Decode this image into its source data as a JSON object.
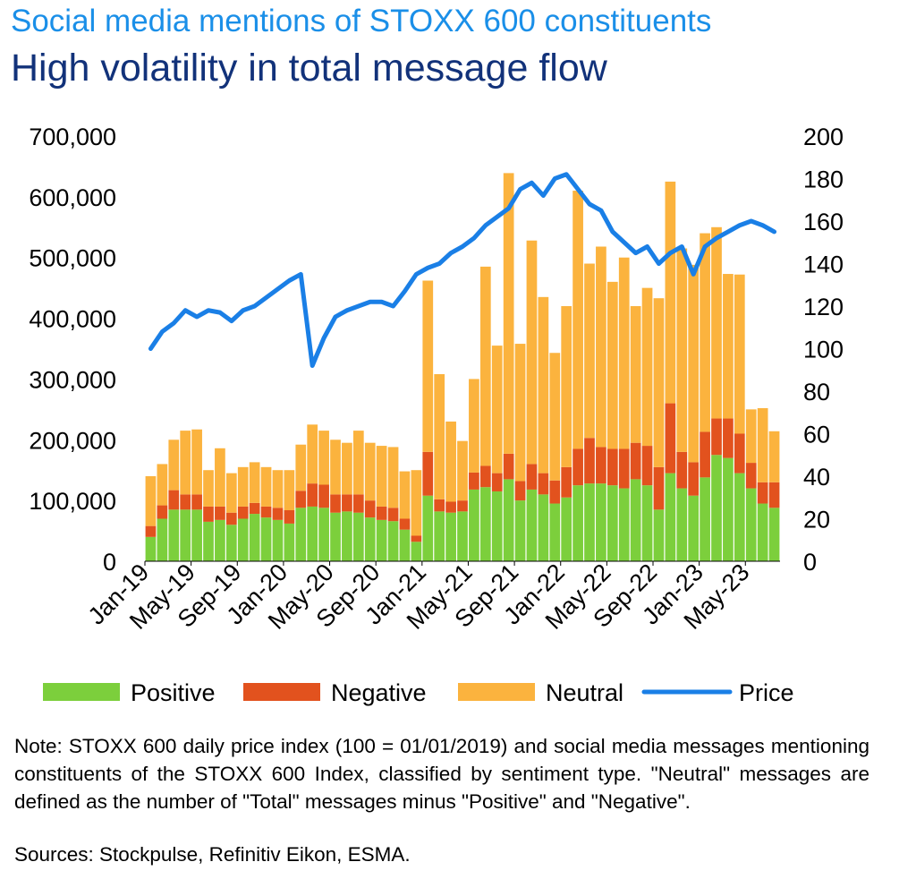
{
  "header": {
    "subtitle": "Social media mentions of STOXX 600 constituents",
    "title": "High volatility in total message flow"
  },
  "footer": {
    "note": "Note: STOXX 600 daily price index (100 = 01/01/2019) and social media messages mentioning constituents of the STOXX 600 Index, classified by sentiment type. \"Neutral\" messages are defined as the number of \"Total\" messages minus \"Positive\" and \"Negative\".",
    "source": "Sources: Stockpulse, Refinitiv Eikon, ESMA."
  },
  "colors": {
    "positive": "#7ccf3c",
    "negative": "#e2521e",
    "neutral": "#fbb33e",
    "price": "#1a7fe6"
  },
  "chart_data": {
    "type": "bar",
    "stacked": true,
    "categories": [
      "Jan-19",
      "Feb-19",
      "Mar-19",
      "Apr-19",
      "May-19",
      "Jun-19",
      "Jul-19",
      "Aug-19",
      "Sep-19",
      "Oct-19",
      "Nov-19",
      "Dec-19",
      "Jan-20",
      "Feb-20",
      "Mar-20",
      "Apr-20",
      "May-20",
      "Jun-20",
      "Jul-20",
      "Aug-20",
      "Sep-20",
      "Oct-20",
      "Nov-20",
      "Dec-20",
      "Jan-21",
      "Feb-21",
      "Mar-21",
      "Apr-21",
      "May-21",
      "Jun-21",
      "Jul-21",
      "Aug-21",
      "Sep-21",
      "Oct-21",
      "Nov-21",
      "Dec-21",
      "Jan-22",
      "Feb-22",
      "Mar-22",
      "Apr-22",
      "May-22",
      "Jun-22",
      "Jul-22",
      "Aug-22",
      "Sep-22",
      "Oct-22",
      "Nov-22",
      "Dec-22",
      "Jan-23",
      "Feb-23",
      "Mar-23",
      "Apr-23",
      "May-23",
      "Jun-23",
      "Jul-23"
    ],
    "x_tick_labels": [
      "Jan-19",
      "May-19",
      "Sep-19",
      "Jan-20",
      "May-20",
      "Sep-20",
      "Jan-21",
      "May-21",
      "Sep-21",
      "Jan-22",
      "May-22",
      "Sep-22",
      "Jan-23",
      "May-23"
    ],
    "series": [
      {
        "name": "Positive",
        "axis": "left",
        "values": [
          40000,
          70000,
          85000,
          85000,
          85000,
          65000,
          68000,
          60000,
          70000,
          78000,
          72000,
          68000,
          62000,
          88000,
          90000,
          88000,
          80000,
          82000,
          80000,
          72000,
          68000,
          66000,
          52000,
          32000,
          108000,
          82000,
          80000,
          82000,
          118000,
          122000,
          115000,
          135000,
          100000,
          118000,
          110000,
          95000,
          105000,
          125000,
          128000,
          128000,
          125000,
          120000,
          135000,
          125000,
          85000,
          145000,
          120000,
          108000,
          138000,
          175000,
          170000,
          145000,
          120000,
          95000,
          88000
        ]
      },
      {
        "name": "Negative",
        "axis": "left",
        "values": [
          18000,
          22000,
          32000,
          25000,
          25000,
          25000,
          22000,
          20000,
          20000,
          18000,
          18000,
          20000,
          22000,
          28000,
          38000,
          38000,
          30000,
          28000,
          30000,
          28000,
          22000,
          22000,
          18000,
          10000,
          72000,
          20000,
          18000,
          18000,
          28000,
          35000,
          30000,
          42000,
          32000,
          42000,
          35000,
          38000,
          50000,
          60000,
          75000,
          60000,
          60000,
          65000,
          60000,
          65000,
          70000,
          115000,
          60000,
          55000,
          75000,
          60000,
          65000,
          65000,
          42000,
          35000,
          42000
        ]
      },
      {
        "name": "Neutral",
        "axis": "left",
        "values": [
          82000,
          68000,
          83000,
          105000,
          107000,
          60000,
          96000,
          65000,
          65000,
          67000,
          65000,
          62000,
          66000,
          76000,
          97000,
          89000,
          90000,
          85000,
          105000,
          95000,
          100000,
          100000,
          78000,
          108000,
          282000,
          206000,
          132000,
          98000,
          154000,
          328000,
          210000,
          462000,
          226000,
          368000,
          290000,
          210000,
          265000,
          425000,
          287000,
          330000,
          275000,
          315000,
          225000,
          260000,
          278000,
          365000,
          335000,
          325000,
          327000,
          315000,
          238000,
          262000,
          88000,
          122000,
          84000
        ]
      },
      {
        "name": "Price",
        "axis": "right",
        "type": "line",
        "dates": [
          "Jan-19",
          "Feb-19",
          "Mar-19",
          "Apr-19",
          "May-19",
          "Jun-19",
          "Jul-19",
          "Aug-19",
          "Sep-19",
          "Oct-19",
          "Nov-19",
          "Dec-19",
          "Jan-20",
          "Feb-20",
          "Mar-20",
          "Apr-20",
          "May-20",
          "Jun-20",
          "Jul-20",
          "Aug-20",
          "Sep-20",
          "Oct-20",
          "Nov-20",
          "Dec-20",
          "Jan-21",
          "Feb-21",
          "Mar-21",
          "Apr-21",
          "May-21",
          "Jun-21",
          "Jul-21",
          "Aug-21",
          "Sep-21",
          "Oct-21",
          "Nov-21",
          "Dec-21",
          "Jan-22",
          "Feb-22",
          "Mar-22",
          "Apr-22",
          "May-22",
          "Jun-22",
          "Jul-22",
          "Aug-22",
          "Sep-22",
          "Oct-22",
          "Nov-22",
          "Dec-22",
          "Jan-23",
          "Feb-23",
          "Mar-23",
          "Apr-23",
          "May-23",
          "Jun-23",
          "Jul-23"
        ],
        "values": [
          100,
          108,
          112,
          118,
          115,
          118,
          117,
          113,
          118,
          120,
          124,
          128,
          132,
          135,
          92,
          105,
          115,
          118,
          120,
          122,
          122,
          120,
          127,
          135,
          138,
          140,
          145,
          148,
          152,
          158,
          162,
          166,
          175,
          178,
          172,
          180,
          182,
          175,
          168,
          165,
          155,
          150,
          145,
          148,
          140,
          145,
          148,
          135,
          148,
          152,
          155,
          158,
          160,
          158,
          155
        ]
      }
    ],
    "y_left": {
      "min": 0,
      "max": 700000,
      "ticks": [
        0,
        100000,
        200000,
        300000,
        400000,
        500000,
        600000,
        700000
      ],
      "tick_labels": [
        "0",
        "100,000",
        "200,000",
        "300,000",
        "400,000",
        "500,000",
        "600,000",
        "700,000"
      ]
    },
    "y_right": {
      "min": 0,
      "max": 200,
      "ticks": [
        0,
        20,
        40,
        60,
        80,
        100,
        120,
        140,
        160,
        180,
        200
      ],
      "tick_labels": [
        "0",
        "20",
        "40",
        "60",
        "80",
        "100",
        "120",
        "140",
        "160",
        "180",
        "200"
      ]
    },
    "legend": {
      "position": "bottom",
      "entries": [
        "Positive",
        "Negative",
        "Neutral",
        "Price"
      ]
    },
    "title": "High volatility in total message flow",
    "xlabel": "",
    "ylabel": ""
  }
}
